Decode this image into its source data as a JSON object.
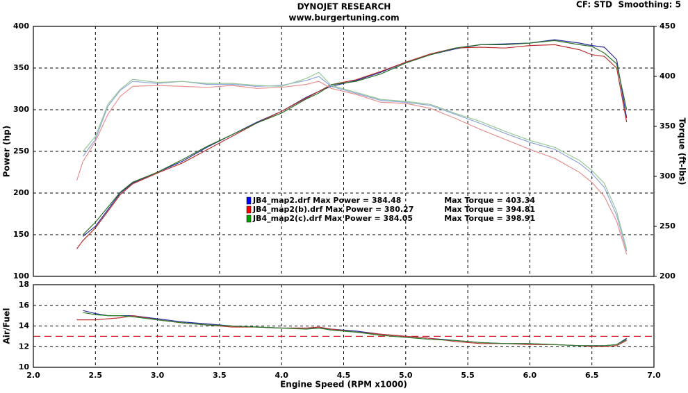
{
  "chart_data": [
    {
      "type": "line",
      "title": "DYNOJET RESEARCH",
      "subtitle": "www.burgertuning.com",
      "annotation": "CF: STD  Smoothing: 5",
      "ylabel": "Power (hp)",
      "y2label": "Torque (ft-lbs)",
      "x": [
        2.35,
        2.4,
        2.5,
        2.6,
        2.7,
        2.8,
        3.0,
        3.2,
        3.4,
        3.6,
        3.8,
        4.0,
        4.2,
        4.3,
        4.4,
        4.6,
        4.8,
        5.0,
        5.2,
        5.4,
        5.6,
        5.8,
        6.0,
        6.2,
        6.4,
        6.5,
        6.6,
        6.7,
        6.78
      ],
      "xlim": [
        2,
        7
      ],
      "xticks": [
        2,
        2.5,
        3,
        3.5,
        4,
        4.5,
        5,
        5.5,
        6,
        6.5,
        7
      ],
      "ylim": [
        100,
        400
      ],
      "yticks": [
        100,
        150,
        200,
        250,
        300,
        350,
        400
      ],
      "y2lim": [
        200,
        450
      ],
      "y2ticks": [
        200,
        250,
        300,
        350,
        400,
        450
      ],
      "grid": true,
      "series": [
        {
          "name": "JB4_map2.drf Max Power = 384.48",
          "legend_color": "#0000ff",
          "color": "#2a2a9a",
          "values": [
            null,
            148,
            160,
            180,
            200,
            212,
            225,
            238,
            255,
            270,
            285,
            298,
            315,
            322,
            328,
            335,
            345,
            357,
            366,
            373,
            378,
            379,
            380,
            384,
            380,
            377,
            375,
            360,
            290
          ]
        },
        {
          "name": "JB4_map2(b).drf Max Power = 380.27",
          "legend_color": "#ff0000",
          "color": "#b83030",
          "values": [
            133,
            143,
            158,
            178,
            198,
            211,
            224,
            236,
            252,
            268,
            284,
            298,
            314,
            322,
            330,
            336,
            346,
            357,
            367,
            374,
            375,
            374,
            377,
            378,
            372,
            366,
            364,
            350,
            285
          ]
        },
        {
          "name": "JB4_map2(c).drf Max Power = 384.05",
          "legend_color": "#00a000",
          "color": "#2a702a",
          "values": [
            null,
            150,
            165,
            183,
            201,
            213,
            225,
            240,
            256,
            270,
            284,
            296,
            313,
            320,
            330,
            334,
            343,
            356,
            366,
            374,
            378,
            378,
            380,
            383,
            378,
            376,
            368,
            355,
            300
          ]
        },
        {
          "name": "Max Torque = 403.34",
          "axis": "y2",
          "color": "#90a8d8",
          "values": [
            null,
            320,
            337,
            370,
            386,
            395,
            393,
            395,
            392,
            392,
            390,
            391,
            396,
            400,
            390,
            383,
            376,
            374,
            371,
            362,
            353,
            343,
            334,
            327,
            313,
            303,
            289,
            261,
            225
          ]
        },
        {
          "name": "Max Torque = 394.81",
          "axis": "y2",
          "color": "#e89090",
          "values": [
            296,
            315,
            335,
            362,
            380,
            390,
            391,
            390,
            389,
            391,
            388,
            389,
            392,
            395,
            388,
            382,
            374,
            373,
            368,
            358,
            347,
            337,
            327,
            318,
            304,
            294,
            280,
            255,
            222
          ]
        },
        {
          "name": "Max Torque = 398.91",
          "axis": "y2",
          "color": "#98c898",
          "values": [
            null,
            325,
            340,
            372,
            387,
            397,
            394,
            395,
            393,
            393,
            391,
            390,
            398,
            404,
            391,
            384,
            377,
            375,
            372,
            363,
            355,
            345,
            336,
            329,
            316,
            306,
            293,
            265,
            227
          ]
        }
      ]
    },
    {
      "type": "line",
      "ylabel": "Air/Fuel",
      "xlabel": "Engine Speed (RPM x1000)",
      "x": [
        2.35,
        2.4,
        2.5,
        2.6,
        2.7,
        2.8,
        3.0,
        3.2,
        3.4,
        3.6,
        3.8,
        4.0,
        4.2,
        4.3,
        4.4,
        4.6,
        4.8,
        5.0,
        5.2,
        5.4,
        5.6,
        5.8,
        6.0,
        6.2,
        6.4,
        6.5,
        6.6,
        6.7,
        6.78
      ],
      "xlim": [
        2,
        7
      ],
      "xticks": [
        {
          "value": 2,
          "label": "2.0"
        },
        2.5,
        {
          "value": 3,
          "label": "3.0"
        },
        3.5,
        {
          "value": 4,
          "label": "4.0"
        },
        4.5,
        {
          "value": 5,
          "label": "5.0"
        },
        5.5,
        {
          "value": 6,
          "label": "6.0"
        },
        6.5,
        {
          "value": 7,
          "label": "7.0"
        }
      ],
      "ylim": [
        10,
        18
      ],
      "yticks": [
        10,
        12,
        14,
        16,
        18
      ],
      "grid": true,
      "reference_line": {
        "value": 13,
        "color": "#cc2222"
      },
      "series": [
        {
          "color": "#2a2a9a",
          "values": [
            null,
            15.5,
            15.2,
            15.0,
            15.0,
            15.0,
            14.7,
            14.4,
            14.2,
            14.0,
            13.9,
            13.8,
            13.8,
            13.8,
            13.7,
            13.5,
            13.2,
            13.0,
            12.8,
            12.6,
            12.4,
            12.3,
            12.3,
            12.2,
            12.1,
            12.1,
            12.1,
            12.2,
            12.8
          ]
        },
        {
          "color": "#c03030",
          "values": [
            14.6,
            14.6,
            14.6,
            14.7,
            14.8,
            15.0,
            14.6,
            14.3,
            14.1,
            13.9,
            13.9,
            13.8,
            13.8,
            13.9,
            13.7,
            13.4,
            13.2,
            13.0,
            12.8,
            12.5,
            12.3,
            12.3,
            12.2,
            12.2,
            12.1,
            12.0,
            12.0,
            12.1,
            12.6
          ]
        },
        {
          "color": "#2a802a",
          "values": [
            null,
            15.3,
            15.1,
            15.0,
            15.0,
            14.9,
            14.6,
            14.3,
            14.1,
            14.0,
            13.9,
            13.8,
            13.7,
            13.8,
            13.6,
            13.4,
            13.1,
            12.9,
            12.7,
            12.6,
            12.4,
            12.3,
            12.3,
            12.2,
            12.1,
            12.1,
            12.1,
            12.2,
            12.7
          ]
        }
      ]
    }
  ]
}
